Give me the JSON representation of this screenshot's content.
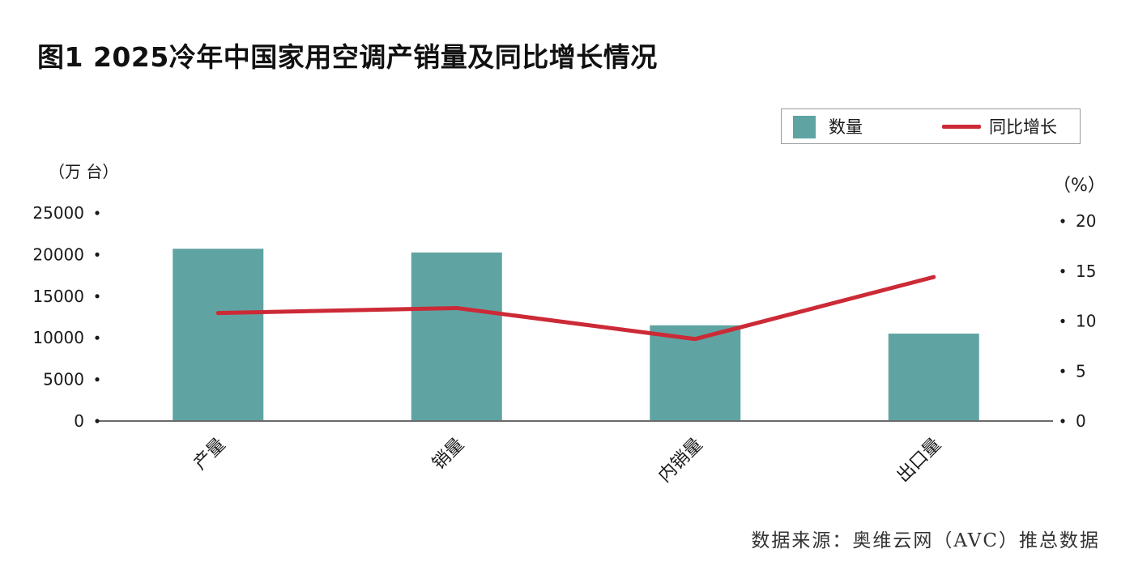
{
  "title": "图1 2025冷年中国家用空调产销量及同比增长情况",
  "source": "数据来源：奥维云网（AVC）推总数据",
  "colors": {
    "bar": "#5fa4a3",
    "line": "#cc2a36",
    "axis": "#6b6b6b"
  },
  "chart_data": {
    "type": "bar",
    "categories": [
      "产量",
      "销量",
      "内销量",
      "出口量"
    ],
    "series": [
      {
        "name": "数量",
        "type": "bar",
        "axis": "left",
        "values": [
          20700,
          20250,
          11500,
          10500
        ]
      },
      {
        "name": "同比增长",
        "type": "line",
        "axis": "right",
        "values": [
          10.8,
          11.3,
          8.2,
          14.4
        ]
      }
    ],
    "y_left": {
      "unit": "（万 台）",
      "ylim": [
        0,
        25000
      ],
      "ticks": [
        "0",
        "5000",
        "10000",
        "15000",
        "20000",
        "25000"
      ]
    },
    "y_right": {
      "unit": "（%）",
      "ylim": [
        0,
        20
      ],
      "ticks": [
        "0",
        "5",
        "10",
        "15",
        "20"
      ]
    },
    "legend": {
      "position": "top-right",
      "bar_label": "数量",
      "line_label": "同比增长"
    },
    "grid": false
  }
}
